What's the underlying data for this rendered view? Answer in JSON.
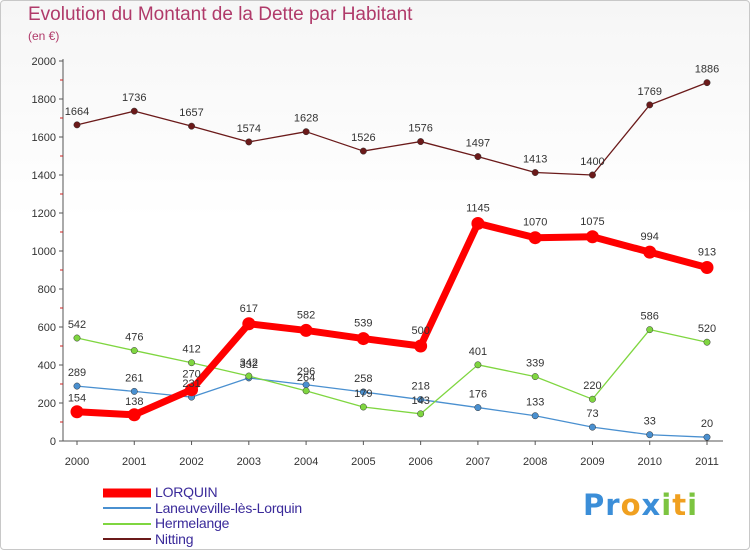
{
  "chart_data": {
    "type": "line",
    "title": "Evolution du Montant de la Dette par Habitant",
    "subtitle": "(en €)",
    "xlabel": "",
    "ylabel": "",
    "x": [
      "2000",
      "2001",
      "2002",
      "2003",
      "2004",
      "2005",
      "2006",
      "2007",
      "2008",
      "2009",
      "2010",
      "2011"
    ],
    "ylim": [
      0,
      2000
    ],
    "yticks": [
      "0",
      "200",
      "400",
      "600",
      "800",
      "1000",
      "1200",
      "1400",
      "1600",
      "1800",
      "2000"
    ],
    "grid": false,
    "legend_position": "bottom-left",
    "series": [
      {
        "name": "LORQUIN",
        "color": "#ff0000",
        "values": [
          154,
          138,
          270,
          617,
          582,
          539,
          500,
          1145,
          1070,
          1075,
          994,
          913
        ]
      },
      {
        "name": "Laneuveville-lès-Lorquin",
        "color": "#4a90d0",
        "values": [
          289,
          261,
          231,
          332,
          296,
          258,
          218,
          176,
          133,
          73,
          33,
          20
        ]
      },
      {
        "name": "Hermelange",
        "color": "#7fd640",
        "values": [
          542,
          476,
          412,
          342,
          264,
          179,
          143,
          401,
          339,
          220,
          586,
          520
        ]
      },
      {
        "name": "Nitting",
        "color": "#6b1a1a",
        "values": [
          1664,
          1736,
          1657,
          1574,
          1628,
          1526,
          1576,
          1497,
          1413,
          1400,
          1769,
          1886
        ]
      }
    ]
  },
  "logo": {
    "letters": [
      {
        "ch": "P",
        "color": "#3b8ed8"
      },
      {
        "ch": "r",
        "color": "#3b8ed8"
      },
      {
        "ch": "o",
        "color": "#f0a020"
      },
      {
        "ch": "x",
        "color": "#3b8ed8"
      },
      {
        "ch": "i",
        "color": "#7cc440"
      },
      {
        "ch": "t",
        "color": "#f0a020"
      },
      {
        "ch": "i",
        "color": "#7cc440"
      }
    ]
  }
}
